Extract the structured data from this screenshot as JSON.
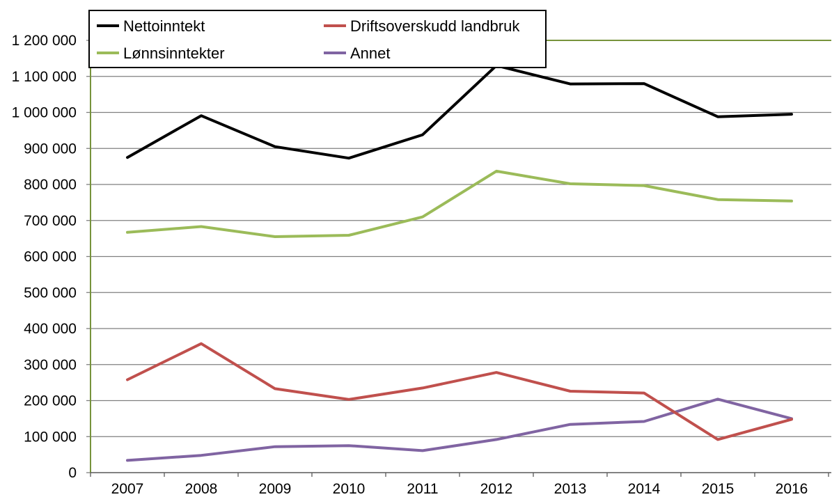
{
  "chart_data": {
    "type": "line",
    "categories": [
      "2007",
      "2008",
      "2009",
      "2010",
      "2011",
      "2012",
      "2013",
      "2014",
      "2015",
      "2016"
    ],
    "ylim": [
      0,
      1200000
    ],
    "yticks": [
      0,
      100000,
      200000,
      300000,
      400000,
      500000,
      600000,
      700000,
      800000,
      900000,
      1000000,
      1100000,
      1200000
    ],
    "ytick_labels": [
      "0",
      "100 000",
      "200 000",
      "300 000",
      "400 000",
      "500 000",
      "600 000",
      "700 000",
      "800 000",
      "900 000",
      "1 000 000",
      "1 100 000",
      "1 200 000"
    ],
    "grid": true,
    "legend_position": "top-left",
    "series": [
      {
        "name": "Nettoinntekt",
        "color": "#000000",
        "values": [
          875000,
          991000,
          905000,
          873000,
          938000,
          1130000,
          1079000,
          1080000,
          988000,
          995000
        ]
      },
      {
        "name": "Driftsoverskudd landbruk",
        "color": "#c0504d",
        "values": [
          258000,
          358000,
          233000,
          203000,
          235000,
          278000,
          226000,
          221000,
          92000,
          148000
        ]
      },
      {
        "name": "Lønnsinntekter",
        "color": "#9bbb59",
        "values": [
          667000,
          683000,
          655000,
          659000,
          710000,
          837000,
          802000,
          797000,
          758000,
          754000
        ]
      },
      {
        "name": "Annet",
        "color": "#8064a2",
        "values": [
          34000,
          48000,
          72000,
          75000,
          61000,
          92000,
          134000,
          142000,
          204000,
          150000
        ]
      }
    ],
    "frame_color": "#77933c",
    "grid_color": "#7f7f7f"
  }
}
